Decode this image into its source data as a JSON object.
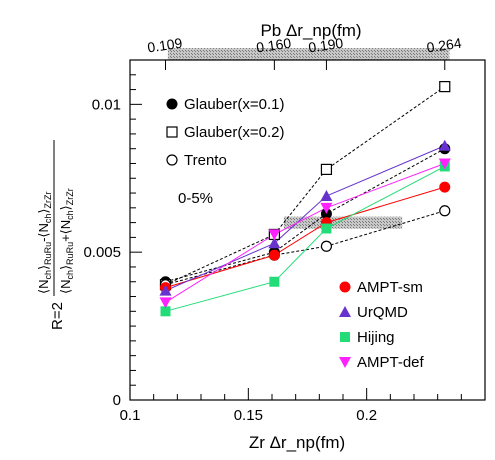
{
  "chart_data": {
    "type": "scatter",
    "xlabel": "Zr Δr_np(fm)",
    "top_axis_label": "Pb Δr_np(fm)",
    "top_ticks": [
      {
        "x": 0.109,
        "label": "0.109"
      },
      {
        "x": 0.16,
        "label": "0.160"
      },
      {
        "x": 0.19,
        "label": "0.190"
      },
      {
        "x": 0.264,
        "label": "0.264"
      }
    ],
    "ylabel": "R=2(⟨N_ch⟩_RuRu − ⟨N_ch⟩_ZrZr)/(⟨N_ch⟩_RuRu + ⟨N_ch⟩_ZrZr)",
    "xlim": [
      0.1,
      0.25
    ],
    "ylim": [
      0,
      0.0115
    ],
    "x_ticks": [
      {
        "v": 0.1,
        "label": "0.1"
      },
      {
        "v": 0.15,
        "label": "0.15"
      },
      {
        "v": 0.2,
        "label": "0.2"
      }
    ],
    "y_ticks": [
      {
        "v": 0,
        "label": "0"
      },
      {
        "v": 0.005,
        "label": "0.005"
      },
      {
        "v": 0.01,
        "label": "0.01"
      }
    ],
    "centrality_label": "0-5%",
    "series": [
      {
        "name": "Glauber(x=0.1)",
        "marker": "filled-circle",
        "color": "#000000",
        "line": "dashed",
        "x": [
          0.115,
          0.161,
          0.183,
          0.233
        ],
        "y": [
          0.004,
          0.005,
          0.0063,
          0.0085
        ]
      },
      {
        "name": "Glauber(x=0.2)",
        "marker": "open-square",
        "color": "#000000",
        "line": "dashed",
        "x": [
          0.115,
          0.161,
          0.183,
          0.233
        ],
        "y": [
          0.0039,
          0.0056,
          0.0078,
          0.0106
        ]
      },
      {
        "name": "Trento",
        "marker": "open-circle",
        "color": "#000000",
        "line": "dashed",
        "x": [
          0.115,
          0.161,
          0.183,
          0.233
        ],
        "y": [
          0.0039,
          0.0049,
          0.0052,
          0.0064
        ]
      },
      {
        "name": "AMPT-sm",
        "marker": "filled-circle",
        "color": "#ff0000",
        "line": "solid",
        "x": [
          0.115,
          0.161,
          0.183,
          0.233
        ],
        "y": [
          0.0038,
          0.0049,
          0.006,
          0.0072
        ]
      },
      {
        "name": "UrQMD",
        "marker": "triangle-up",
        "color": "#6633cc",
        "line": "solid",
        "x": [
          0.115,
          0.161,
          0.183,
          0.233
        ],
        "y": [
          0.0037,
          0.0053,
          0.0069,
          0.0086
        ]
      },
      {
        "name": "Hijing",
        "marker": "filled-square",
        "color": "#22dd77",
        "line": "solid",
        "x": [
          0.115,
          0.161,
          0.183,
          0.233
        ],
        "y": [
          0.003,
          0.004,
          0.0058,
          0.0079
        ]
      },
      {
        "name": "AMPT-def",
        "marker": "triangle-down",
        "color": "#ff22ff",
        "line": "solid",
        "x": [
          0.115,
          0.161,
          0.183,
          0.233
        ],
        "y": [
          0.0033,
          0.0056,
          0.0065,
          0.008
        ]
      }
    ],
    "grey_bands": [
      {
        "x": [
          0.116,
          0.235
        ],
        "y": 0.0117
      },
      {
        "x": [
          0.165,
          0.215
        ],
        "y": 0.006
      }
    ]
  }
}
